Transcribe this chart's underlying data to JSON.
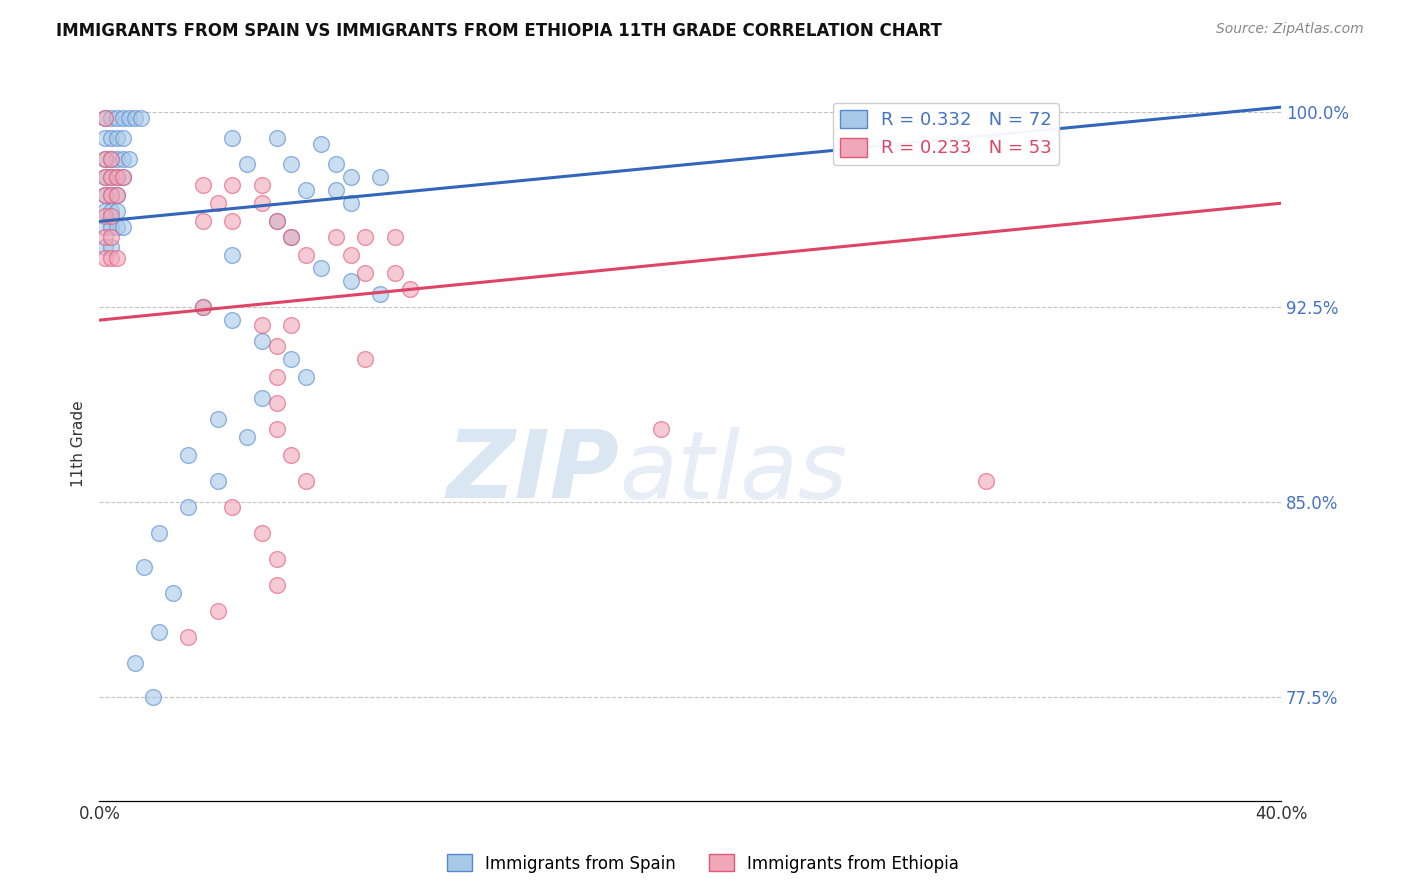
{
  "title": "IMMIGRANTS FROM SPAIN VS IMMIGRANTS FROM ETHIOPIA 11TH GRADE CORRELATION CHART",
  "source": "Source: ZipAtlas.com",
  "ylabel": "11th Grade",
  "ylabel_right_ticks": [
    "100.0%",
    "92.5%",
    "85.0%",
    "77.5%"
  ],
  "ylabel_right_vals": [
    1.0,
    0.925,
    0.85,
    0.775
  ],
  "legend_blue_label": "Immigrants from Spain",
  "legend_pink_label": "Immigrants from Ethiopia",
  "R_blue": 0.332,
  "N_blue": 72,
  "R_pink": 0.233,
  "N_pink": 53,
  "blue_color": "#a8c8e8",
  "pink_color": "#f0a8b8",
  "blue_edge_color": "#5588cc",
  "pink_edge_color": "#e05878",
  "blue_line_color": "#3366bb",
  "pink_line_color": "#dd4466",
  "blue_scatter": [
    [
      0.002,
      0.998
    ],
    [
      0.004,
      0.998
    ],
    [
      0.006,
      0.998
    ],
    [
      0.008,
      0.998
    ],
    [
      0.01,
      0.998
    ],
    [
      0.012,
      0.998
    ],
    [
      0.014,
      0.998
    ],
    [
      0.002,
      0.99
    ],
    [
      0.004,
      0.99
    ],
    [
      0.006,
      0.99
    ],
    [
      0.008,
      0.99
    ],
    [
      0.002,
      0.982
    ],
    [
      0.004,
      0.982
    ],
    [
      0.006,
      0.982
    ],
    [
      0.008,
      0.982
    ],
    [
      0.01,
      0.982
    ],
    [
      0.002,
      0.975
    ],
    [
      0.004,
      0.975
    ],
    [
      0.006,
      0.975
    ],
    [
      0.008,
      0.975
    ],
    [
      0.002,
      0.968
    ],
    [
      0.004,
      0.968
    ],
    [
      0.006,
      0.968
    ],
    [
      0.002,
      0.962
    ],
    [
      0.004,
      0.962
    ],
    [
      0.006,
      0.962
    ],
    [
      0.002,
      0.956
    ],
    [
      0.004,
      0.956
    ],
    [
      0.006,
      0.956
    ],
    [
      0.008,
      0.956
    ],
    [
      0.002,
      0.948
    ],
    [
      0.004,
      0.948
    ],
    [
      0.045,
      0.99
    ],
    [
      0.06,
      0.99
    ],
    [
      0.075,
      0.988
    ],
    [
      0.05,
      0.98
    ],
    [
      0.065,
      0.98
    ],
    [
      0.08,
      0.98
    ],
    [
      0.085,
      0.975
    ],
    [
      0.095,
      0.975
    ],
    [
      0.07,
      0.97
    ],
    [
      0.08,
      0.97
    ],
    [
      0.085,
      0.965
    ],
    [
      0.06,
      0.958
    ],
    [
      0.065,
      0.952
    ],
    [
      0.045,
      0.945
    ],
    [
      0.075,
      0.94
    ],
    [
      0.085,
      0.935
    ],
    [
      0.095,
      0.93
    ],
    [
      0.035,
      0.925
    ],
    [
      0.045,
      0.92
    ],
    [
      0.055,
      0.912
    ],
    [
      0.065,
      0.905
    ],
    [
      0.07,
      0.898
    ],
    [
      0.055,
      0.89
    ],
    [
      0.04,
      0.882
    ],
    [
      0.05,
      0.875
    ],
    [
      0.03,
      0.868
    ],
    [
      0.04,
      0.858
    ],
    [
      0.03,
      0.848
    ],
    [
      0.02,
      0.838
    ],
    [
      0.015,
      0.825
    ],
    [
      0.025,
      0.815
    ],
    [
      0.02,
      0.8
    ],
    [
      0.012,
      0.788
    ],
    [
      0.018,
      0.775
    ]
  ],
  "pink_scatter": [
    [
      0.002,
      0.998
    ],
    [
      0.002,
      0.982
    ],
    [
      0.004,
      0.982
    ],
    [
      0.002,
      0.975
    ],
    [
      0.004,
      0.975
    ],
    [
      0.006,
      0.975
    ],
    [
      0.008,
      0.975
    ],
    [
      0.002,
      0.968
    ],
    [
      0.004,
      0.968
    ],
    [
      0.006,
      0.968
    ],
    [
      0.002,
      0.96
    ],
    [
      0.004,
      0.96
    ],
    [
      0.002,
      0.952
    ],
    [
      0.004,
      0.952
    ],
    [
      0.002,
      0.944
    ],
    [
      0.004,
      0.944
    ],
    [
      0.006,
      0.944
    ],
    [
      0.035,
      0.972
    ],
    [
      0.045,
      0.972
    ],
    [
      0.055,
      0.972
    ],
    [
      0.04,
      0.965
    ],
    [
      0.055,
      0.965
    ],
    [
      0.035,
      0.958
    ],
    [
      0.045,
      0.958
    ],
    [
      0.06,
      0.958
    ],
    [
      0.065,
      0.952
    ],
    [
      0.08,
      0.952
    ],
    [
      0.09,
      0.952
    ],
    [
      0.1,
      0.952
    ],
    [
      0.07,
      0.945
    ],
    [
      0.085,
      0.945
    ],
    [
      0.09,
      0.938
    ],
    [
      0.1,
      0.938
    ],
    [
      0.105,
      0.932
    ],
    [
      0.035,
      0.925
    ],
    [
      0.055,
      0.918
    ],
    [
      0.065,
      0.918
    ],
    [
      0.06,
      0.91
    ],
    [
      0.09,
      0.905
    ],
    [
      0.06,
      0.898
    ],
    [
      0.06,
      0.888
    ],
    [
      0.06,
      0.878
    ],
    [
      0.065,
      0.868
    ],
    [
      0.07,
      0.858
    ],
    [
      0.045,
      0.848
    ],
    [
      0.055,
      0.838
    ],
    [
      0.06,
      0.828
    ],
    [
      0.06,
      0.818
    ],
    [
      0.04,
      0.808
    ],
    [
      0.03,
      0.798
    ],
    [
      0.19,
      0.878
    ],
    [
      0.3,
      0.858
    ]
  ],
  "blue_trendline": {
    "x": [
      0.0,
      0.4
    ],
    "y": [
      0.958,
      1.002
    ]
  },
  "pink_trendline": {
    "x": [
      0.0,
      0.4
    ],
    "y": [
      0.92,
      0.965
    ]
  },
  "xlim": [
    0.0,
    0.4
  ],
  "ylim": [
    0.735,
    1.01
  ],
  "watermark_zip": "ZIP",
  "watermark_atlas": "atlas",
  "background_color": "#ffffff"
}
